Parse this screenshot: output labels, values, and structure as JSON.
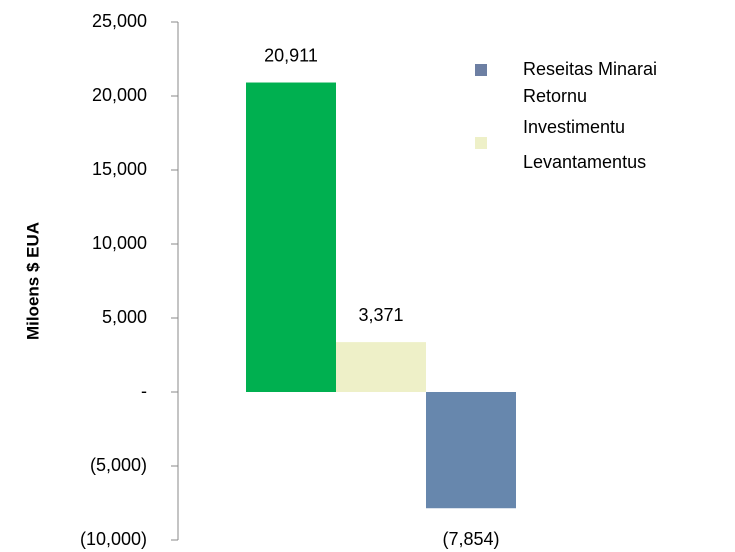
{
  "chart_data": {
    "type": "bar",
    "y_label": "Miloens $ EUA",
    "categories": [
      null,
      null,
      null
    ],
    "values": [
      20911,
      3371,
      -7854
    ],
    "value_labels": [
      "20,911",
      "3,371",
      "(7,854)"
    ],
    "colors": [
      "#00b050",
      "#eef0c8",
      "#6787ad"
    ],
    "ylim": [
      -10000,
      25000
    ],
    "yticks": [
      {
        "value": -10000,
        "label": "(10,000)"
      },
      {
        "value": -5000,
        "label": "(5,000)"
      },
      {
        "value": 0,
        "label": "-"
      },
      {
        "value": 5000,
        "label": "5,000"
      },
      {
        "value": 10000,
        "label": "10,000"
      },
      {
        "value": 15000,
        "label": "15,000"
      },
      {
        "value": 20000,
        "label": "20,000"
      },
      {
        "value": 25000,
        "label": "25,000"
      }
    ],
    "grid": false,
    "legend": {
      "swatches": [
        "#6d7fa3",
        "#eef0c8"
      ],
      "lines": [
        "Reseitas Minarai",
        "Retornu",
        "Investimentu",
        "Levantamentus"
      ]
    }
  }
}
